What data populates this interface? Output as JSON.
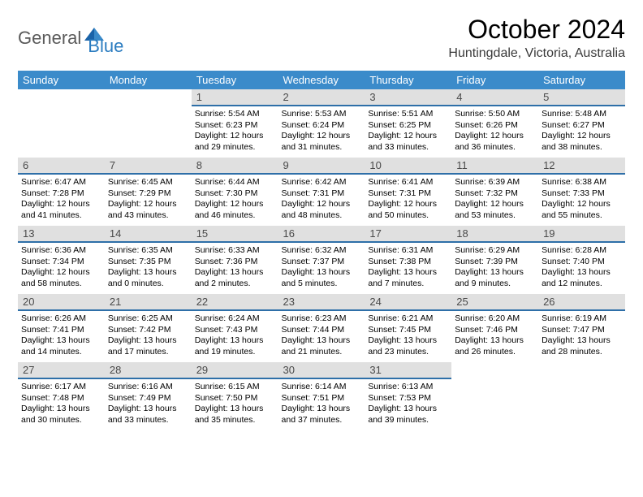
{
  "logo": {
    "general": "General",
    "blue": "Blue"
  },
  "title": "October 2024",
  "location": "Huntingdale, Victoria, Australia",
  "colors": {
    "header_bg": "#3b8bca",
    "daynum_bg": "#e0e0e0",
    "daynum_border": "#2e6fa8",
    "logo_blue": "#2b7cc0",
    "logo_gray": "#5a5a5a"
  },
  "dow": [
    "Sunday",
    "Monday",
    "Tuesday",
    "Wednesday",
    "Thursday",
    "Friday",
    "Saturday"
  ],
  "weeks": [
    [
      null,
      null,
      {
        "n": "1",
        "sr": "5:54 AM",
        "ss": "6:23 PM",
        "dl": "12 hours and 29 minutes."
      },
      {
        "n": "2",
        "sr": "5:53 AM",
        "ss": "6:24 PM",
        "dl": "12 hours and 31 minutes."
      },
      {
        "n": "3",
        "sr": "5:51 AM",
        "ss": "6:25 PM",
        "dl": "12 hours and 33 minutes."
      },
      {
        "n": "4",
        "sr": "5:50 AM",
        "ss": "6:26 PM",
        "dl": "12 hours and 36 minutes."
      },
      {
        "n": "5",
        "sr": "5:48 AM",
        "ss": "6:27 PM",
        "dl": "12 hours and 38 minutes."
      }
    ],
    [
      {
        "n": "6",
        "sr": "6:47 AM",
        "ss": "7:28 PM",
        "dl": "12 hours and 41 minutes."
      },
      {
        "n": "7",
        "sr": "6:45 AM",
        "ss": "7:29 PM",
        "dl": "12 hours and 43 minutes."
      },
      {
        "n": "8",
        "sr": "6:44 AM",
        "ss": "7:30 PM",
        "dl": "12 hours and 46 minutes."
      },
      {
        "n": "9",
        "sr": "6:42 AM",
        "ss": "7:31 PM",
        "dl": "12 hours and 48 minutes."
      },
      {
        "n": "10",
        "sr": "6:41 AM",
        "ss": "7:31 PM",
        "dl": "12 hours and 50 minutes."
      },
      {
        "n": "11",
        "sr": "6:39 AM",
        "ss": "7:32 PM",
        "dl": "12 hours and 53 minutes."
      },
      {
        "n": "12",
        "sr": "6:38 AM",
        "ss": "7:33 PM",
        "dl": "12 hours and 55 minutes."
      }
    ],
    [
      {
        "n": "13",
        "sr": "6:36 AM",
        "ss": "7:34 PM",
        "dl": "12 hours and 58 minutes."
      },
      {
        "n": "14",
        "sr": "6:35 AM",
        "ss": "7:35 PM",
        "dl": "13 hours and 0 minutes."
      },
      {
        "n": "15",
        "sr": "6:33 AM",
        "ss": "7:36 PM",
        "dl": "13 hours and 2 minutes."
      },
      {
        "n": "16",
        "sr": "6:32 AM",
        "ss": "7:37 PM",
        "dl": "13 hours and 5 minutes."
      },
      {
        "n": "17",
        "sr": "6:31 AM",
        "ss": "7:38 PM",
        "dl": "13 hours and 7 minutes."
      },
      {
        "n": "18",
        "sr": "6:29 AM",
        "ss": "7:39 PM",
        "dl": "13 hours and 9 minutes."
      },
      {
        "n": "19",
        "sr": "6:28 AM",
        "ss": "7:40 PM",
        "dl": "13 hours and 12 minutes."
      }
    ],
    [
      {
        "n": "20",
        "sr": "6:26 AM",
        "ss": "7:41 PM",
        "dl": "13 hours and 14 minutes."
      },
      {
        "n": "21",
        "sr": "6:25 AM",
        "ss": "7:42 PM",
        "dl": "13 hours and 17 minutes."
      },
      {
        "n": "22",
        "sr": "6:24 AM",
        "ss": "7:43 PM",
        "dl": "13 hours and 19 minutes."
      },
      {
        "n": "23",
        "sr": "6:23 AM",
        "ss": "7:44 PM",
        "dl": "13 hours and 21 minutes."
      },
      {
        "n": "24",
        "sr": "6:21 AM",
        "ss": "7:45 PM",
        "dl": "13 hours and 23 minutes."
      },
      {
        "n": "25",
        "sr": "6:20 AM",
        "ss": "7:46 PM",
        "dl": "13 hours and 26 minutes."
      },
      {
        "n": "26",
        "sr": "6:19 AM",
        "ss": "7:47 PM",
        "dl": "13 hours and 28 minutes."
      }
    ],
    [
      {
        "n": "27",
        "sr": "6:17 AM",
        "ss": "7:48 PM",
        "dl": "13 hours and 30 minutes."
      },
      {
        "n": "28",
        "sr": "6:16 AM",
        "ss": "7:49 PM",
        "dl": "13 hours and 33 minutes."
      },
      {
        "n": "29",
        "sr": "6:15 AM",
        "ss": "7:50 PM",
        "dl": "13 hours and 35 minutes."
      },
      {
        "n": "30",
        "sr": "6:14 AM",
        "ss": "7:51 PM",
        "dl": "13 hours and 37 minutes."
      },
      {
        "n": "31",
        "sr": "6:13 AM",
        "ss": "7:53 PM",
        "dl": "13 hours and 39 minutes."
      },
      null,
      null
    ]
  ]
}
